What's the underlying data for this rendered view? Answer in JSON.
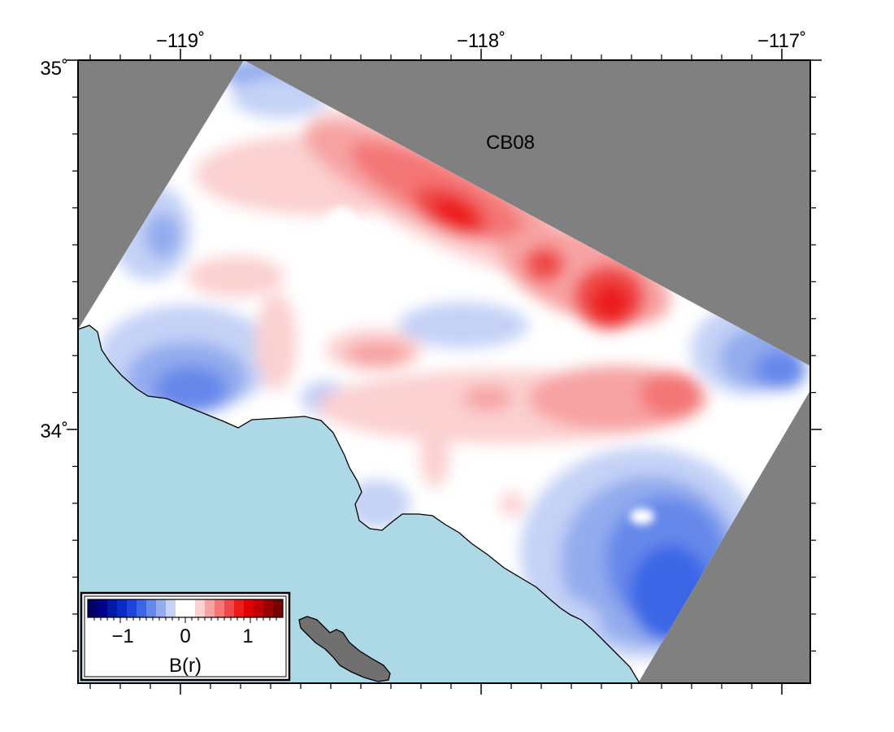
{
  "map": {
    "model_label": "CB08",
    "lon_ticks": [
      {
        "value": -119,
        "label": "−119˚"
      },
      {
        "value": -118,
        "label": "−118˚"
      },
      {
        "value": -117,
        "label": "−117˚"
      }
    ],
    "lat_ticks": [
      {
        "value": 35,
        "label": "35˚"
      },
      {
        "value": 34,
        "label": "34˚"
      }
    ],
    "lon_range": [
      -119.35,
      -116.93
    ],
    "lat_range": [
      33.32,
      35.0
    ],
    "colors": {
      "ocean": "#add8e6",
      "masked": "#808080",
      "island": "#707070",
      "frame": "#000000"
    }
  },
  "colorbar": {
    "label": "B(r)",
    "range": [
      -1.5,
      1.5
    ],
    "ticks": [
      {
        "value": -1,
        "label": "−1"
      },
      {
        "value": 0,
        "label": "0"
      },
      {
        "value": 1,
        "label": "1"
      }
    ],
    "colors": [
      "#000066",
      "#00008b",
      "#001aa8",
      "#0a2cc4",
      "#1f44dd",
      "#3a66e6",
      "#6688ea",
      "#93acee",
      "#c4d2f6",
      "#ffffff",
      "#ffffff",
      "#fbd0d0",
      "#f7a3a3",
      "#f47676",
      "#f04848",
      "#ec1c1c",
      "#e00000",
      "#c00000",
      "#9a0000",
      "#770000"
    ]
  }
}
